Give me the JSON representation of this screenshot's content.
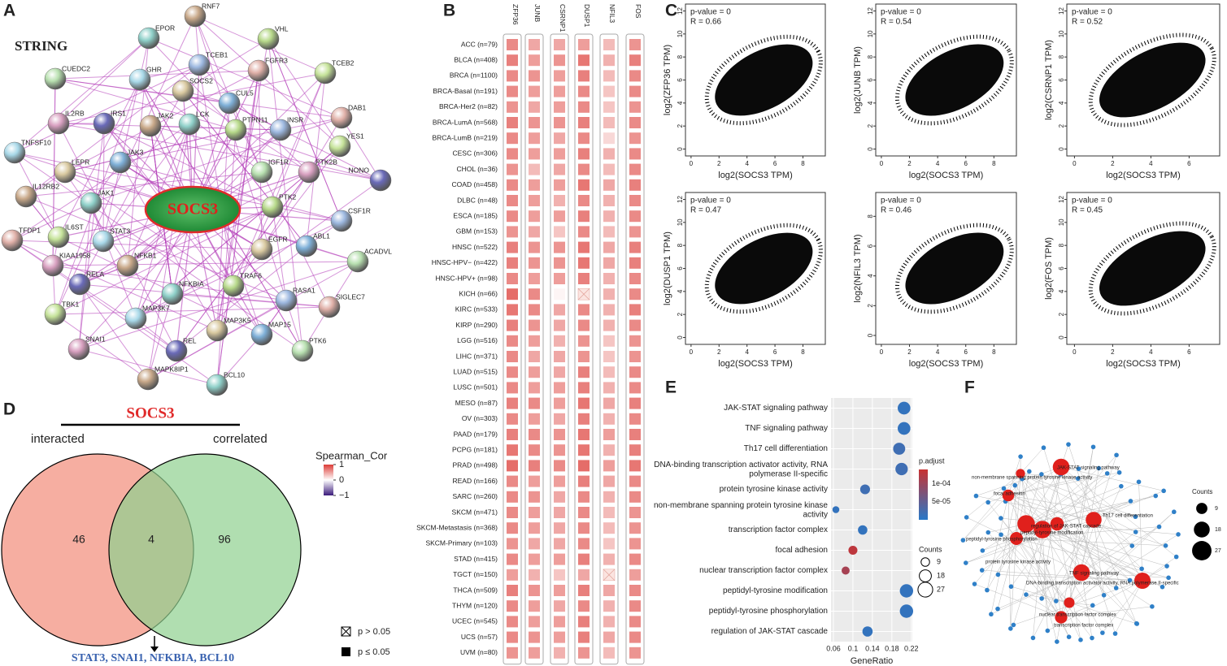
{
  "panel_labels": [
    "A",
    "B",
    "C",
    "D",
    "E",
    "F"
  ],
  "network": {
    "title": "STRING",
    "center": "SOCS3",
    "nodes": [
      "RNF7",
      "EPOR",
      "VHL",
      "TCEB1",
      "FGFR3",
      "TCEB2",
      "GHR",
      "SOCS2",
      "CUL5",
      "CUEDC2",
      "IL2RB",
      "IRS1",
      "JAK2",
      "LCK",
      "PTPN11",
      "INSR",
      "DAB1",
      "YES1",
      "TNFSF10",
      "LEPR",
      "JAK3",
      "IGF1R",
      "PTK2B",
      "NONO",
      "IL12RB2",
      "JAK1",
      "PTK2",
      "CSF1R",
      "TFDP1",
      "IL6ST",
      "STAT3",
      "EGFR",
      "ABL1",
      "ACADVL",
      "KIAA1958",
      "RELA",
      "NFKB1",
      "NFKBIA",
      "TRAF6",
      "RASA1",
      "SIGLEC7",
      "TBK1",
      "MAP3K7",
      "MAP3K5",
      "MAP15",
      "PTK6",
      "SNAI1",
      "REL",
      "MAPK8IP1",
      "BCL10"
    ]
  },
  "heatmap": {
    "columns": [
      "ZFP36",
      "JUNB",
      "CSRNP1",
      "DUSP1",
      "NFIL3",
      "FOS"
    ],
    "rows": [
      "ACC (n=79)",
      "BLCA (n=408)",
      "BRCA (n=1100)",
      "BRCA-Basal (n=191)",
      "BRCA-Her2 (n=82)",
      "BRCA-LumA (n=568)",
      "BRCA-LumB (n=219)",
      "CESC (n=306)",
      "CHOL (n=36)",
      "COAD (n=458)",
      "DLBC (n=48)",
      "ESCA (n=185)",
      "GBM (n=153)",
      "HNSC (n=522)",
      "HNSC-HPV− (n=422)",
      "HNSC-HPV+ (n=98)",
      "KICH (n=66)",
      "KIRC (n=533)",
      "KIRP (n=290)",
      "LGG (n=516)",
      "LIHC (n=371)",
      "LUAD (n=515)",
      "LUSC (n=501)",
      "MESO (n=87)",
      "OV (n=303)",
      "PAAD (n=179)",
      "PCPG (n=181)",
      "PRAD (n=498)",
      "READ (n=166)",
      "SARC (n=260)",
      "SKCM (n=471)",
      "SKCM-Metastasis (n=368)",
      "SKCM-Primary (n=103)",
      "STAD (n=415)",
      "TGCT (n=150)",
      "THCA (n=509)",
      "THYM (n=120)",
      "UCEC (n=545)",
      "UCS (n=57)",
      "UVM (n=80)"
    ],
    "values": [
      [
        0.6,
        0.45,
        0.45,
        0.5,
        0.35,
        0.55
      ],
      [
        0.65,
        0.5,
        0.55,
        0.7,
        0.4,
        0.65
      ],
      [
        0.6,
        0.55,
        0.5,
        0.65,
        0.35,
        0.6
      ],
      [
        0.6,
        0.5,
        0.5,
        0.6,
        0.3,
        0.6
      ],
      [
        0.55,
        0.45,
        0.5,
        0.6,
        0.3,
        0.55
      ],
      [
        0.65,
        0.55,
        0.55,
        0.65,
        0.35,
        0.6
      ],
      [
        0.6,
        0.5,
        0.45,
        0.6,
        0.2,
        0.55
      ],
      [
        0.6,
        0.5,
        0.5,
        0.65,
        0.4,
        0.6
      ],
      [
        0.55,
        0.35,
        0.45,
        0.6,
        0.35,
        0.6
      ],
      [
        0.6,
        0.5,
        0.5,
        0.7,
        0.45,
        0.65
      ],
      [
        0.6,
        0.5,
        0.4,
        0.6,
        0.4,
        0.6
      ],
      [
        0.6,
        0.5,
        0.5,
        0.65,
        0.4,
        0.6
      ],
      [
        0.55,
        0.45,
        0.3,
        0.6,
        0.35,
        0.55
      ],
      [
        0.65,
        0.55,
        0.55,
        0.7,
        0.45,
        0.65
      ],
      [
        0.65,
        0.55,
        0.55,
        0.7,
        0.45,
        0.65
      ],
      [
        0.6,
        0.5,
        0.5,
        0.65,
        0.4,
        0.6
      ],
      [
        0.75,
        0.6,
        0.05,
        null,
        0.4,
        0.6
      ],
      [
        0.7,
        0.6,
        0.45,
        0.6,
        0.4,
        0.65
      ],
      [
        0.65,
        0.55,
        0.45,
        0.6,
        0.4,
        0.6
      ],
      [
        0.6,
        0.5,
        0.4,
        0.55,
        0.3,
        0.55
      ],
      [
        0.6,
        0.45,
        0.45,
        0.55,
        0.3,
        0.55
      ],
      [
        0.6,
        0.5,
        0.45,
        0.65,
        0.35,
        0.6
      ],
      [
        0.6,
        0.5,
        0.5,
        0.65,
        0.4,
        0.6
      ],
      [
        0.65,
        0.6,
        0.5,
        0.7,
        0.45,
        0.65
      ],
      [
        0.6,
        0.5,
        0.45,
        0.65,
        0.4,
        0.6
      ],
      [
        0.65,
        0.6,
        0.55,
        0.7,
        0.5,
        0.65
      ],
      [
        0.7,
        0.6,
        0.55,
        0.7,
        0.4,
        0.65
      ],
      [
        0.75,
        0.65,
        0.6,
        0.75,
        0.5,
        0.7
      ],
      [
        0.6,
        0.5,
        0.5,
        0.65,
        0.45,
        0.6
      ],
      [
        0.6,
        0.55,
        0.45,
        0.6,
        0.4,
        0.6
      ],
      [
        0.6,
        0.5,
        0.45,
        0.6,
        0.35,
        0.55
      ],
      [
        0.6,
        0.5,
        0.45,
        0.6,
        0.35,
        0.55
      ],
      [
        0.55,
        0.45,
        0.45,
        0.6,
        0.3,
        0.55
      ],
      [
        0.6,
        0.5,
        0.5,
        0.65,
        0.4,
        0.6
      ],
      [
        0.5,
        0.4,
        0.3,
        0.45,
        null,
        0.5
      ],
      [
        0.65,
        0.55,
        0.5,
        0.65,
        0.45,
        0.6
      ],
      [
        0.6,
        0.5,
        0.45,
        0.6,
        0.4,
        0.6
      ],
      [
        0.6,
        0.5,
        0.5,
        0.65,
        0.4,
        0.6
      ],
      [
        0.6,
        0.55,
        0.5,
        0.65,
        0.45,
        0.6
      ],
      [
        0.55,
        0.5,
        0.4,
        0.55,
        0.35,
        0.55
      ]
    ],
    "legend": {
      "title": "Spearman_Cor",
      "lim": [
        -1,
        1
      ],
      "ticks": [
        1,
        0,
        {
          "value": -1,
          "label": "−1"
        }
      ]
    },
    "p_legend": [
      "p > 0.05",
      "p ≤ 0.05"
    ]
  },
  "scatter": {
    "xlabel": "log2(SOCS3 TPM)",
    "panels": [
      {
        "ylabel": "log2(ZFP36 TPM)",
        "p_value": "p-value = 0",
        "r": "R = 0.66",
        "xlim": [
          -0.4,
          9.6
        ],
        "xticks": [
          0,
          2,
          4,
          6,
          8
        ],
        "ylim": [
          -0.6,
          12.6
        ],
        "yticks": [
          0,
          2,
          4,
          6,
          8,
          10,
          12
        ]
      },
      {
        "ylabel": "log2(JUNB TPM)",
        "p_value": "p-value = 0",
        "r": "R = 0.54",
        "xlim": [
          -0.4,
          9.6
        ],
        "xticks": [
          0,
          2,
          4,
          6,
          8
        ],
        "ylim": [
          -0.6,
          12.6
        ],
        "yticks": [
          0,
          2,
          4,
          6,
          8,
          10,
          12
        ]
      },
      {
        "ylabel": "log2(CSRNP1 TPM)",
        "p_value": "p-value = 0",
        "r": "R = 0.52",
        "xlim": [
          -0.4,
          7.6
        ],
        "xticks": [
          0,
          2,
          4,
          6
        ],
        "ylim": [
          -0.6,
          12.6
        ],
        "yticks": [
          0,
          2,
          4,
          6,
          8,
          10,
          12
        ]
      },
      {
        "ylabel": "log2(DUSP1 TPM)",
        "p_value": "p-value = 0",
        "r": "R = 0.47",
        "xlim": [
          -0.4,
          9.6
        ],
        "xticks": [
          0,
          2,
          4,
          6,
          8
        ],
        "ylim": [
          -0.6,
          12.6
        ],
        "yticks": [
          0,
          2,
          4,
          6,
          8,
          10,
          12
        ]
      },
      {
        "ylabel": "log2(NFIL3 TPM)",
        "p_value": "p-value = 0",
        "r": "R = 0.46",
        "xlim": [
          -0.4,
          9.6
        ],
        "xticks": [
          0,
          2,
          4,
          6,
          8
        ],
        "ylim": [
          -0.6,
          9.6
        ],
        "yticks": [
          0,
          2,
          4,
          6,
          8
        ]
      },
      {
        "ylabel": "log2(FOS TPM)",
        "p_value": "p-value = 0",
        "r": "R = 0.45",
        "xlim": [
          -0.4,
          7.6
        ],
        "xticks": [
          0,
          2,
          4,
          6
        ],
        "ylim": [
          -0.6,
          12.6
        ],
        "yticks": [
          0,
          2,
          4,
          6,
          8,
          10,
          12
        ]
      }
    ]
  },
  "venn": {
    "title": "SOCS3",
    "left_label": "interacted",
    "right_label": "correlated",
    "left_only": 46,
    "both": 4,
    "right_only": 96,
    "shared_genes": "STAT3, SNAI1, NFKBIA, BCL10"
  },
  "dotplot": {
    "type": "dot",
    "terms": [
      "JAK-STAT signaling pathway",
      "TNF signaling pathway",
      "Th17 cell differentiation",
      "DNA-binding transcription activator activity, RNA polymerase II-specific",
      "protein tyrosine kinase activity",
      "non-membrane spanning protein tyrosine kinase activity",
      "transcription factor complex",
      "focal adhesion",
      "nuclear transcription factor complex",
      "peptidyl-tyrosine modification",
      "peptidyl-tyrosine phosphorylation",
      "regulation of JAK-STAT cascade"
    ],
    "gene_ratio": [
      0.205,
      0.205,
      0.195,
      0.2,
      0.125,
      0.065,
      0.12,
      0.1,
      0.085,
      0.21,
      0.21,
      0.13
    ],
    "p_adjust": [
      1e-05,
      1e-05,
      2e-05,
      2e-05,
      2e-05,
      1e-05,
      1e-05,
      0.00013,
      0.00011,
      1e-05,
      1e-05,
      1e-05
    ],
    "counts": [
      20,
      20,
      18,
      19,
      12,
      6,
      11,
      10,
      8,
      22,
      22,
      13
    ],
    "xlabel": "GeneRatio",
    "xlim": [
      0.055,
      0.222
    ],
    "xticks": [
      0.06,
      0.1,
      0.14,
      0.18,
      0.22
    ],
    "color_title": "p.adjust",
    "color_lim": [
      0,
      0.00014
    ],
    "color_ticks": [
      {
        "value": 0.0001,
        "label": "1e-04"
      },
      {
        "value": 5e-05,
        "label": "5e-05"
      }
    ],
    "size_title": "Counts",
    "size_ticks": [
      9,
      18,
      27
    ]
  },
  "cnet": {
    "labels": [
      "JAK-STAT signaling pathway",
      "non-membrane spanning protein tyrosine kinase activity",
      "focal adhesion",
      "Th17 cell differentiation",
      "peptidyl-tyrosine phosphorylation",
      "regulation of JAK-STAT cascade",
      "peptidyl-tyrosine modification",
      "protein tyrosine kinase activity",
      "TNF signaling pathway",
      "DNA-binding transcription activator activity, RNA polymerase II-specific",
      "nuclear transcription factor complex",
      "transcription factor complex"
    ],
    "legend_title": "Counts",
    "legend_ticks": [
      9,
      18,
      27
    ]
  }
}
